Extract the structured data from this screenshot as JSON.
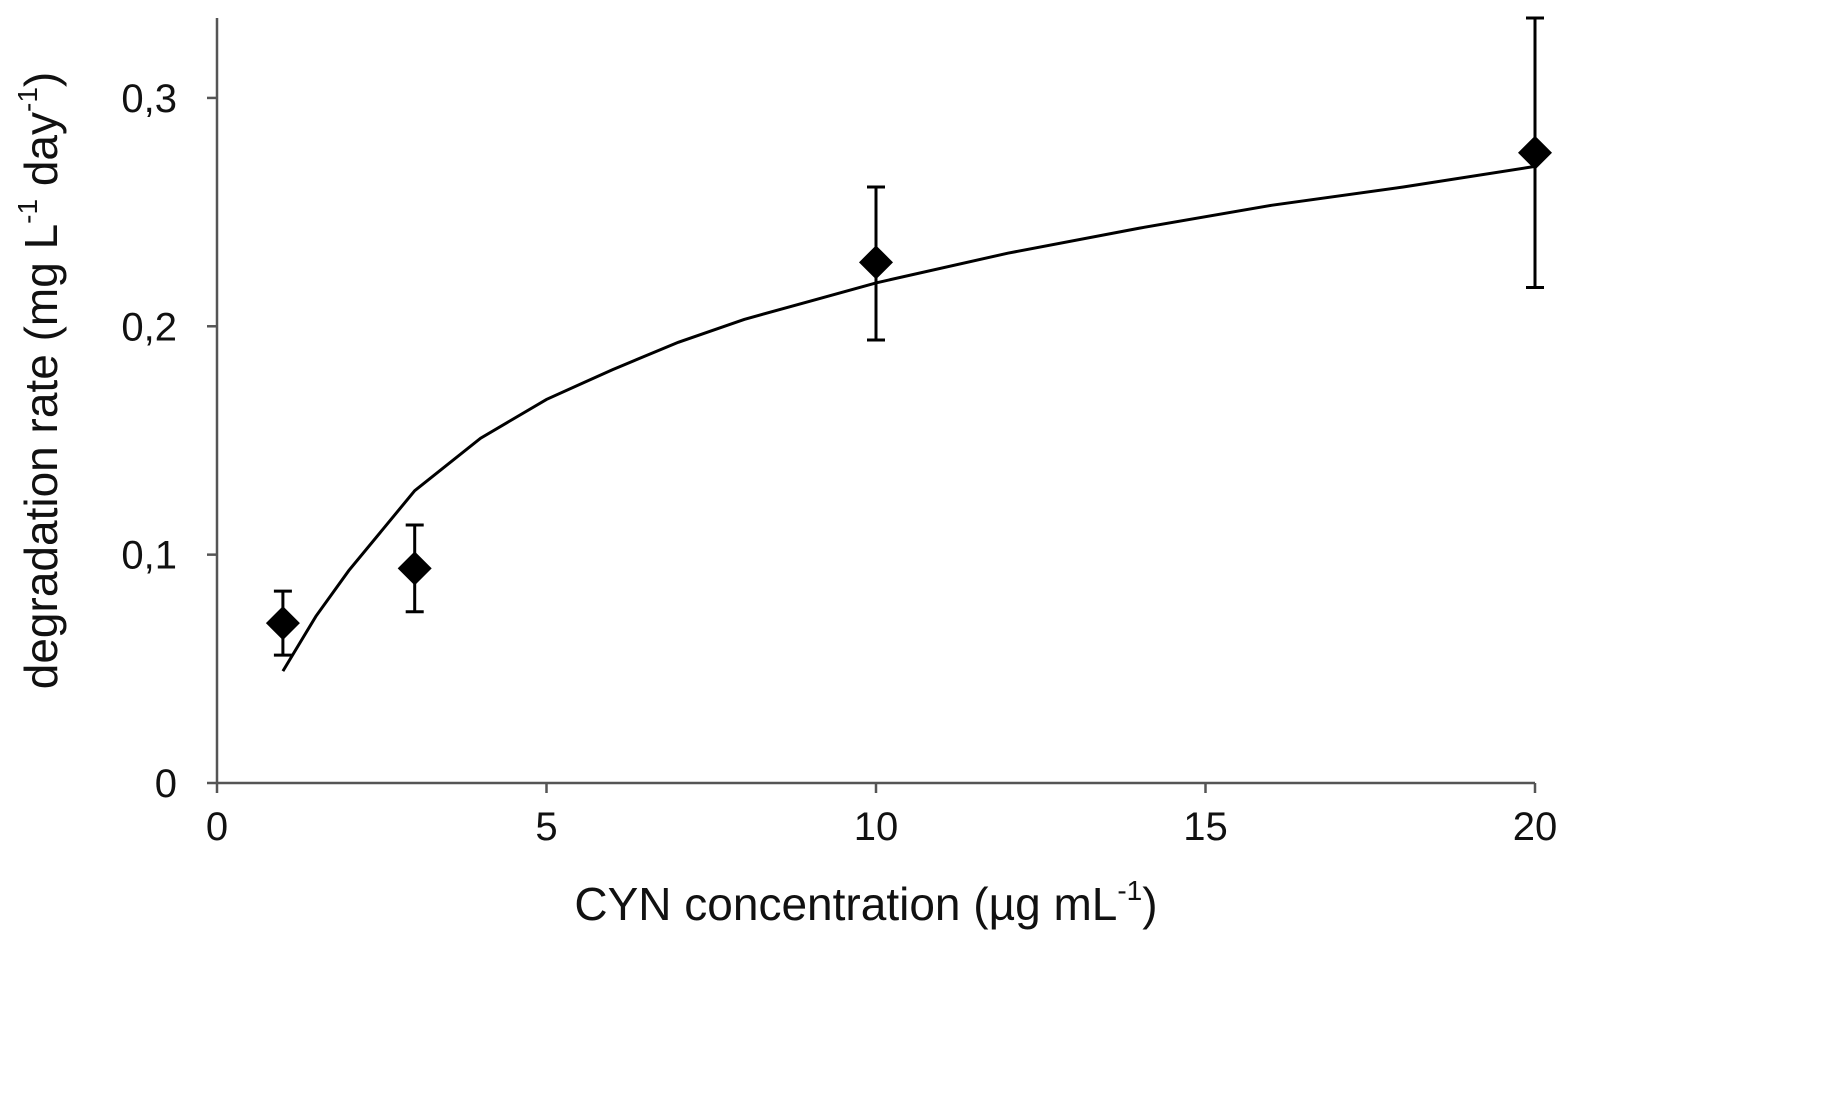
{
  "chart_data": {
    "type": "scatter",
    "title": "",
    "xlabel": {
      "main": "CYN concentration  (µg mL",
      "sup": "-1",
      "end": ")"
    },
    "ylabel": {
      "main": "degradation  rate  (mg L",
      "sup1": "-1",
      "mid": " day",
      "sup2": "-1",
      "end": ")"
    },
    "xlim": [
      0,
      20
    ],
    "ylim": [
      0,
      0.335
    ],
    "x_ticks": [
      {
        "value": 0,
        "label": "0"
      },
      {
        "value": 5,
        "label": "5"
      },
      {
        "value": 10,
        "label": "10"
      },
      {
        "value": 15,
        "label": "15"
      },
      {
        "value": 20,
        "label": "20"
      }
    ],
    "y_ticks": [
      {
        "value": 0,
        "label": "0"
      },
      {
        "value": 0.1,
        "label": "0,1"
      },
      {
        "value": 0.2,
        "label": "0,2"
      },
      {
        "value": 0.3,
        "label": "0,3"
      }
    ],
    "grid": false,
    "legend": "none",
    "marker": "diamond",
    "series": [
      {
        "x": [
          1,
          3,
          10,
          20
        ],
        "y": [
          0.07,
          0.094,
          0.228,
          0.276
        ],
        "error_low": [
          0.056,
          0.075,
          0.194,
          0.217
        ],
        "error_high": [
          0.084,
          0.113,
          0.261,
          0.335
        ]
      }
    ],
    "fit_curve": {
      "type": "logarithmic",
      "points": [
        [
          1,
          0.049
        ],
        [
          1.5,
          0.073
        ],
        [
          2,
          0.093
        ],
        [
          3,
          0.128
        ],
        [
          4,
          0.151
        ],
        [
          5,
          0.168
        ],
        [
          6,
          0.181
        ],
        [
          7,
          0.193
        ],
        [
          8,
          0.203
        ],
        [
          9,
          0.211
        ],
        [
          10,
          0.219
        ],
        [
          12,
          0.232
        ],
        [
          14,
          0.243
        ],
        [
          16,
          0.253
        ],
        [
          18,
          0.261
        ],
        [
          20,
          0.27
        ]
      ]
    },
    "colors": {
      "marker": "#000000",
      "line": "#000000",
      "axis": "#555555"
    }
  }
}
